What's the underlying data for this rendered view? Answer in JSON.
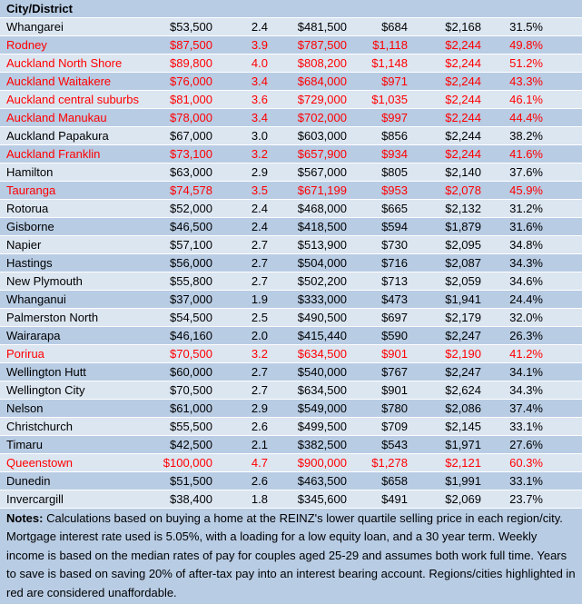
{
  "header": {
    "title": "City/District"
  },
  "table": {
    "rows": [
      {
        "cells": [
          "Whangarei",
          "$53,500",
          "2.4",
          "$481,500",
          "$684",
          "$2,168",
          "31.5%"
        ],
        "color": "#000000"
      },
      {
        "cells": [
          "Rodney",
          "$87,500",
          "3.9",
          "$787,500",
          "$1,118",
          "$2,244",
          "49.8%"
        ],
        "color": "#ff0000"
      },
      {
        "cells": [
          "Auckland North Shore",
          "$89,800",
          "4.0",
          "$808,200",
          "$1,148",
          "$2,244",
          "51.2%"
        ],
        "color": "#ff0000"
      },
      {
        "cells": [
          "Auckland Waitakere",
          "$76,000",
          "3.4",
          "$684,000",
          "$971",
          "$2,244",
          "43.3%"
        ],
        "color": "#ff0000"
      },
      {
        "cells": [
          "Auckland central suburbs",
          "$81,000",
          "3.6",
          "$729,000",
          "$1,035",
          "$2,244",
          "46.1%"
        ],
        "color": "#ff0000"
      },
      {
        "cells": [
          "Auckland Manukau",
          "$78,000",
          "3.4",
          "$702,000",
          "$997",
          "$2,244",
          "44.4%"
        ],
        "color": "#ff0000"
      },
      {
        "cells": [
          "Auckland Papakura",
          "$67,000",
          "3.0",
          "$603,000",
          "$856",
          "$2,244",
          "38.2%"
        ],
        "color": "#000000"
      },
      {
        "cells": [
          "Auckland Franklin",
          "$73,100",
          "3.2",
          "$657,900",
          "$934",
          "$2,244",
          "41.6%"
        ],
        "color": "#ff0000"
      },
      {
        "cells": [
          "Hamilton",
          "$63,000",
          "2.9",
          "$567,000",
          "$805",
          "$2,140",
          "37.6%"
        ],
        "color": "#000000"
      },
      {
        "cells": [
          "Tauranga",
          "$74,578",
          "3.5",
          "$671,199",
          "$953",
          "$2,078",
          "45.9%"
        ],
        "color": "#ff0000"
      },
      {
        "cells": [
          "Rotorua",
          "$52,000",
          "2.4",
          "$468,000",
          "$665",
          "$2,132",
          "31.2%"
        ],
        "color": "#000000"
      },
      {
        "cells": [
          "Gisborne",
          "$46,500",
          "2.4",
          "$418,500",
          "$594",
          "$1,879",
          "31.6%"
        ],
        "color": "#000000"
      },
      {
        "cells": [
          "Napier",
          "$57,100",
          "2.7",
          "$513,900",
          "$730",
          "$2,095",
          "34.8%"
        ],
        "color": "#000000"
      },
      {
        "cells": [
          "Hastings",
          "$56,000",
          "2.7",
          "$504,000",
          "$716",
          "$2,087",
          "34.3%"
        ],
        "color": "#000000"
      },
      {
        "cells": [
          "New Plymouth",
          "$55,800",
          "2.7",
          "$502,200",
          "$713",
          "$2,059",
          "34.6%"
        ],
        "color": "#000000"
      },
      {
        "cells": [
          "Whanganui",
          "$37,000",
          "1.9",
          "$333,000",
          "$473",
          "$1,941",
          "24.4%"
        ],
        "color": "#000000"
      },
      {
        "cells": [
          "Palmerston North",
          "$54,500",
          "2.5",
          "$490,500",
          "$697",
          "$2,179",
          "32.0%"
        ],
        "color": "#000000"
      },
      {
        "cells": [
          "Wairarapa",
          "$46,160",
          "2.0",
          "$415,440",
          "$590",
          "$2,247",
          "26.3%"
        ],
        "color": "#000000"
      },
      {
        "cells": [
          "Porirua",
          "$70,500",
          "3.2",
          "$634,500",
          "$901",
          "$2,190",
          "41.2%"
        ],
        "color": "#ff0000"
      },
      {
        "cells": [
          "Wellington Hutt",
          "$60,000",
          "2.7",
          "$540,000",
          "$767",
          "$2,247",
          "34.1%"
        ],
        "color": "#000000"
      },
      {
        "cells": [
          "Wellington City",
          "$70,500",
          "2.7",
          "$634,500",
          "$901",
          "$2,624",
          "34.3%"
        ],
        "color": "#000000"
      },
      {
        "cells": [
          "Nelson",
          "$61,000",
          "2.9",
          "$549,000",
          "$780",
          "$2,086",
          "37.4%"
        ],
        "color": "#000000"
      },
      {
        "cells": [
          "Christchurch",
          "$55,500",
          "2.6",
          "$499,500",
          "$709",
          "$2,145",
          "33.1%"
        ],
        "color": "#000000"
      },
      {
        "cells": [
          "Timaru",
          "$42,500",
          "2.1",
          "$382,500",
          "$543",
          "$1,971",
          "27.6%"
        ],
        "color": "#000000"
      },
      {
        "cells": [
          "Queenstown",
          "$100,000",
          "4.7",
          "$900,000",
          "$1,278",
          "$2,121",
          "60.3%"
        ],
        "color": "#ff0000"
      },
      {
        "cells": [
          "Dunedin",
          "$51,500",
          "2.6",
          "$463,500",
          "$658",
          "$1,991",
          "33.1%"
        ],
        "color": "#000000"
      },
      {
        "cells": [
          "Invercargill",
          "$38,400",
          "1.8",
          "$345,600",
          "$491",
          "$2,069",
          "23.7%"
        ],
        "color": "#000000"
      }
    ]
  },
  "notes": {
    "label": "Notes:",
    "text": "Calculations based on buying a home at the REINZ's lower quartile selling price in each region/city. Mortgage interest rate used is 5.05%, with a loading for a low equity loan, and a 30 year term. Weekly income is based on the median rates of pay for couples aged 25-29 and assumes both work full time. Years to save is based on saving 20% of after-tax pay into an interest bearing account. Regions/cities highlighted in red are considered unaffordable."
  }
}
